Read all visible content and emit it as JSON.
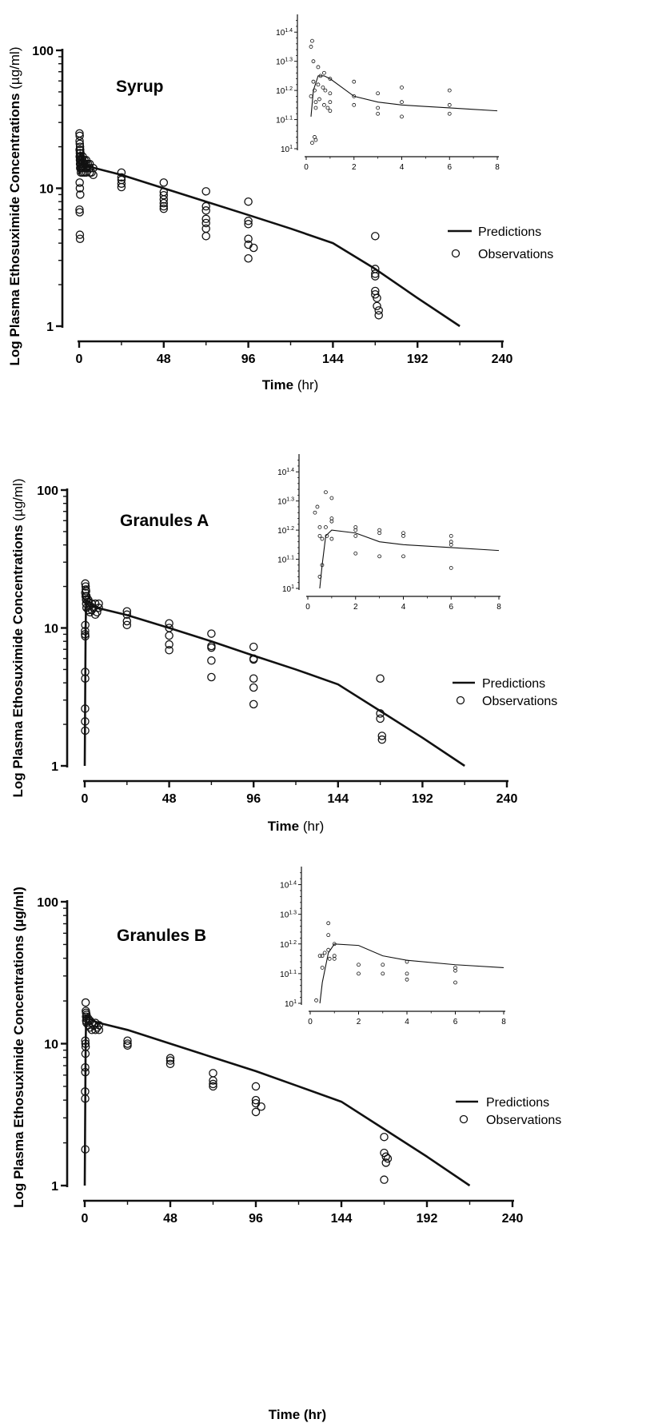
{
  "chart_data": [
    {
      "type": "scatter",
      "title": "Syrup",
      "xlabel": "Time",
      "xunit": "(hr)",
      "ylabel": "Log Plasma Ethosuximide Concentrations",
      "yunit": "(µg/ml)",
      "x_ticks": [
        0,
        48,
        96,
        144,
        192,
        240
      ],
      "x_tick_labels": [
        "0",
        "48",
        "96",
        "144",
        "192",
        "240"
      ],
      "y_ticks": [
        1,
        10,
        100
      ],
      "y_tick_labels": [
        "1",
        "10",
        "100"
      ],
      "xlim": [
        0,
        240
      ],
      "ylim": [
        1,
        100
      ],
      "y_scale": "log",
      "grid": false,
      "legend": {
        "position": "right",
        "entries": [
          "Predictions",
          "Observations"
        ]
      },
      "series": [
        {
          "name": "Predictions",
          "mark": "line",
          "x": [
            0,
            0.25,
            0.5,
            0.75,
            1,
            2,
            3,
            4,
            6,
            8,
            24,
            48,
            72,
            96,
            120,
            144,
            168,
            192,
            216
          ],
          "y": [
            12.6,
            17.0,
            18.2,
            18.2,
            17.8,
            15.6,
            15.1,
            14.8,
            14.4,
            14.1,
            12.5,
            10.0,
            8.0,
            6.4,
            5.1,
            4.0,
            2.6,
            1.6,
            1.0
          ]
        },
        {
          "name": "Observations",
          "mark": "circle",
          "x": [
            0.2,
            0.25,
            0.25,
            0.3,
            0.3,
            0.35,
            0.4,
            0.45,
            0.5,
            0.5,
            0.55,
            0.6,
            0.6,
            0.7,
            0.75,
            0.8,
            0.9,
            1,
            1,
            1,
            1.2,
            1.5,
            1.8,
            2,
            2,
            2,
            2.5,
            3,
            3,
            3,
            3.5,
            4,
            4,
            4,
            4.5,
            5,
            6,
            6,
            6,
            7,
            8,
            8,
            0.3,
            0.4,
            0.6,
            0.2,
            0.3,
            0.4,
            0.5,
            24,
            24,
            24,
            24,
            24,
            48,
            48,
            48,
            48,
            48,
            48,
            48,
            72,
            72,
            72,
            72,
            72,
            72,
            72,
            96,
            96,
            96,
            96,
            96,
            96,
            99,
            168,
            168,
            168,
            168,
            168,
            168,
            169,
            169,
            170,
            170
          ],
          "y": [
            25,
            22,
            19,
            24,
            17,
            21,
            18,
            16,
            20,
            15,
            17,
            14,
            19,
            16,
            18,
            15,
            17,
            14,
            16,
            13,
            15,
            14,
            16,
            15,
            13,
            17,
            14,
            15,
            13,
            16,
            14,
            15,
            13,
            16,
            14,
            15,
            13,
            14,
            15,
            13,
            14,
            12.5,
            11,
            10,
            9,
            7,
            6.7,
            4.6,
            4.3,
            13,
            12,
            11.5,
            10.8,
            10.2,
            11,
            9.4,
            8.9,
            8.3,
            7.8,
            7.4,
            7.1,
            9.5,
            7.4,
            6.9,
            6.0,
            5.6,
            5.1,
            4.5,
            8.0,
            5.8,
            5.5,
            4.3,
            3.9,
            3.1,
            3.7,
            4.5,
            2.6,
            2.4,
            2.3,
            1.8,
            1.7,
            1.6,
            1.4,
            1.3,
            1.2
          ]
        }
      ],
      "inset": {
        "type": "scatter",
        "x_ticks": [
          0,
          2,
          4,
          6,
          8
        ],
        "x_tick_labels": [
          "0",
          "2",
          "4",
          "6",
          "8"
        ],
        "y_ticks": [
          1.0,
          1.1,
          1.2,
          1.3,
          1.4
        ],
        "y_tick_bases": [
          "10",
          "10",
          "10",
          "10",
          "10"
        ],
        "y_tick_exponents": [
          "1",
          "1.1",
          "1.2",
          "1.3",
          "1.4"
        ],
        "xlim": [
          0,
          8
        ],
        "ylim": [
          1.0,
          1.45
        ],
        "y_scale": "log",
        "prediction": {
          "x": [
            0.2,
            0.3,
            0.5,
            0.75,
            1,
            1.5,
            2,
            3,
            4,
            5,
            6,
            7,
            8
          ],
          "y": [
            1.11,
            1.2,
            1.25,
            1.25,
            1.24,
            1.21,
            1.18,
            1.16,
            1.15,
            1.145,
            1.14,
            1.135,
            1.13
          ]
        },
        "observations": {
          "x": [
            0.2,
            0.2,
            0.25,
            0.3,
            0.3,
            0.35,
            0.4,
            0.4,
            0.5,
            0.5,
            0.55,
            0.6,
            0.7,
            0.75,
            0.75,
            0.8,
            0.9,
            1,
            1,
            1,
            1,
            0.25,
            0.35,
            0.4,
            2,
            2,
            2,
            3,
            3,
            3,
            4,
            4,
            4,
            6,
            6,
            6
          ],
          "y": [
            1.35,
            1.18,
            1.37,
            1.3,
            1.23,
            1.2,
            1.16,
            1.14,
            1.28,
            1.22,
            1.17,
            1.25,
            1.21,
            1.15,
            1.26,
            1.2,
            1.14,
            1.24,
            1.19,
            1.16,
            1.13,
            1.02,
            1.04,
            1.03,
            1.23,
            1.18,
            1.15,
            1.19,
            1.14,
            1.12,
            1.21,
            1.16,
            1.11,
            1.2,
            1.15,
            1.12
          ]
        }
      }
    },
    {
      "type": "scatter",
      "title": "Granules A",
      "xlabel": "Time",
      "xunit": "(hr)",
      "ylabel": "Log Plasma Ethosuximide Concentrations",
      "yunit": "(µg/ml)",
      "x_ticks": [
        0,
        48,
        96,
        144,
        192,
        240
      ],
      "x_tick_labels": [
        "0",
        "48",
        "96",
        "144",
        "192",
        "240"
      ],
      "y_ticks": [
        1,
        10,
        100
      ],
      "y_tick_labels": [
        "1",
        "10",
        "100"
      ],
      "xlim": [
        0,
        240
      ],
      "ylim": [
        1,
        100
      ],
      "y_scale": "log",
      "grid": false,
      "legend": {
        "position": "right",
        "entries": [
          "Predictions",
          "Observations"
        ]
      },
      "series": [
        {
          "name": "Predictions",
          "mark": "line",
          "x": [
            0,
            0.5,
            0.75,
            1,
            2,
            3,
            4,
            6,
            8,
            24,
            48,
            72,
            96,
            120,
            144,
            168,
            192,
            216
          ],
          "y": [
            1.0,
            10.0,
            15.0,
            15.8,
            15.5,
            15.0,
            14.7,
            14.2,
            13.9,
            12.4,
            10.0,
            8.0,
            6.3,
            5.0,
            3.9,
            2.5,
            1.6,
            1.0
          ]
        },
        {
          "name": "Observations",
          "mark": "circle",
          "x": [
            0.3,
            0.3,
            0.5,
            0.5,
            0.6,
            0.75,
            0.75,
            0.8,
            1,
            1,
            1,
            2,
            2,
            2,
            3,
            3,
            4,
            4,
            5,
            6,
            6,
            7,
            8,
            8,
            0.2,
            0.2,
            0.3,
            0.3,
            0.25,
            0.25,
            0.2,
            0.2,
            0.25,
            24,
            24,
            24,
            24,
            48,
            48,
            48,
            48,
            48,
            72,
            72,
            72,
            72,
            72,
            96,
            96,
            96,
            96,
            96,
            96,
            168,
            168,
            168,
            169,
            169
          ],
          "y": [
            21,
            18,
            20,
            17,
            19,
            16,
            18.5,
            15,
            17,
            14,
            16,
            15.5,
            13.5,
            16,
            14.5,
            13,
            15,
            13.5,
            14,
            15,
            12.5,
            13,
            15,
            14,
            9.5,
            9,
            8.7,
            10.5,
            4.8,
            4.3,
            2.6,
            2.1,
            1.8,
            13.2,
            12.5,
            11.2,
            10.5,
            10.8,
            10,
            8.8,
            7.6,
            6.9,
            9.1,
            7.4,
            7.2,
            5.8,
            4.4,
            7.3,
            6.0,
            5.9,
            4.3,
            3.7,
            2.8,
            4.3,
            2.4,
            2.2,
            1.65,
            1.55
          ]
        }
      ],
      "inset": {
        "type": "scatter",
        "x_ticks": [
          0,
          2,
          4,
          6,
          8
        ],
        "x_tick_labels": [
          "0",
          "2",
          "4",
          "6",
          "8"
        ],
        "y_ticks": [
          1.0,
          1.1,
          1.2,
          1.3,
          1.4
        ],
        "y_tick_bases": [
          "10",
          "10",
          "10",
          "10",
          "10"
        ],
        "y_tick_exponents": [
          "1",
          "1.1",
          "1.2",
          "1.3",
          "1.4"
        ],
        "xlim": [
          0,
          8
        ],
        "ylim": [
          1.0,
          1.45
        ],
        "y_scale": "log",
        "prediction": {
          "x": [
            0.5,
            0.6,
            0.75,
            1,
            2,
            3,
            4,
            6,
            8
          ],
          "y": [
            1.0,
            1.08,
            1.18,
            1.2,
            1.19,
            1.16,
            1.15,
            1.14,
            1.13
          ]
        },
        "observations": {
          "x": [
            0.3,
            0.4,
            0.5,
            0.5,
            0.6,
            0.75,
            0.75,
            0.8,
            1,
            1,
            1,
            1,
            0.5,
            0.6,
            2,
            2,
            2,
            2,
            3,
            3,
            3,
            4,
            4,
            4,
            6,
            6,
            6,
            6
          ],
          "y": [
            1.26,
            1.28,
            1.21,
            1.18,
            1.17,
            1.33,
            1.21,
            1.18,
            1.31,
            1.24,
            1.23,
            1.17,
            1.04,
            1.08,
            1.21,
            1.2,
            1.18,
            1.12,
            1.2,
            1.19,
            1.11,
            1.19,
            1.18,
            1.11,
            1.18,
            1.16,
            1.15,
            1.07
          ]
        }
      }
    },
    {
      "type": "scatter",
      "title": "Granules B",
      "xlabel": "Time",
      "xunit": "(hr)",
      "ylabel": "Log Plasma Ethosuximide Concentrations",
      "yunit": "(µg/ml)",
      "x_ticks": [
        0,
        48,
        96,
        144,
        192,
        240
      ],
      "x_tick_labels": [
        "0",
        "48",
        "96",
        "144",
        "192",
        "240"
      ],
      "y_ticks": [
        1,
        10,
        100
      ],
      "y_tick_labels": [
        "1",
        "10",
        "100"
      ],
      "xlim": [
        0,
        240
      ],
      "ylim": [
        1,
        100
      ],
      "y_scale": "log",
      "grid": false,
      "legend": {
        "position": "right",
        "entries": [
          "Predictions",
          "Observations"
        ]
      },
      "series": [
        {
          "name": "Predictions",
          "mark": "line",
          "x": [
            0,
            0.5,
            0.75,
            1,
            2,
            3,
            4,
            6,
            8,
            24,
            48,
            72,
            96,
            120,
            144,
            168,
            192,
            216
          ],
          "y": [
            1.0,
            10.0,
            14.5,
            15.8,
            15.5,
            15.0,
            14.7,
            14.3,
            14.0,
            12.5,
            10.0,
            8.0,
            6.4,
            5.0,
            3.9,
            2.5,
            1.6,
            1.0
          ]
        },
        {
          "name": "Observations",
          "mark": "circle",
          "x": [
            0.5,
            0.6,
            0.75,
            0.75,
            0.8,
            1,
            1,
            1,
            2,
            2,
            3,
            3,
            4,
            4,
            5,
            6,
            6,
            7,
            8,
            8,
            0.3,
            0.4,
            0.4,
            0.5,
            0.25,
            0.3,
            0.2,
            0.25,
            0.3,
            24,
            24,
            24,
            48,
            48,
            48,
            72,
            72,
            72,
            72,
            96,
            96,
            96,
            96,
            99,
            168,
            168,
            169,
            169,
            170,
            168
          ],
          "y": [
            19.5,
            17,
            16.5,
            15.5,
            14.5,
            16,
            15,
            14,
            15,
            13.5,
            14.5,
            13,
            14,
            12.5,
            13.5,
            14,
            12.5,
            13,
            13.5,
            12.5,
            10.5,
            10,
            8.5,
            9.5,
            6.8,
            6.3,
            4.6,
            4.1,
            1.8,
            10.5,
            10,
            9.7,
            7.9,
            7.6,
            7.2,
            6.2,
            5.5,
            5.2,
            5.0,
            5.0,
            4.0,
            3.8,
            3.3,
            3.6,
            2.2,
            1.7,
            1.6,
            1.45,
            1.55,
            1.1
          ]
        }
      ],
      "inset": {
        "type": "scatter",
        "x_ticks": [
          0,
          2,
          4,
          6,
          8
        ],
        "x_tick_labels": [
          "0",
          "2",
          "4",
          "6",
          "8"
        ],
        "y_ticks": [
          1.0,
          1.1,
          1.2,
          1.3,
          1.4
        ],
        "y_tick_bases": [
          "10",
          "10",
          "10",
          "10",
          "10"
        ],
        "y_tick_exponents": [
          "1",
          "1.1",
          "1.2",
          "1.3",
          "1.4"
        ],
        "xlim": [
          0,
          8
        ],
        "ylim": [
          1.0,
          1.45
        ],
        "y_scale": "log",
        "prediction": {
          "x": [
            0.4,
            0.5,
            0.75,
            1,
            2,
            3,
            4,
            6,
            8
          ],
          "y": [
            1.0,
            1.07,
            1.17,
            1.2,
            1.195,
            1.16,
            1.145,
            1.13,
            1.12
          ]
        },
        "observations": {
          "x": [
            0.25,
            0.4,
            0.5,
            0.5,
            0.6,
            0.75,
            0.75,
            0.75,
            0.8,
            1,
            1,
            1,
            2,
            2,
            3,
            3,
            4,
            4,
            4,
            6,
            6,
            6
          ],
          "y": [
            1.01,
            1.16,
            1.16,
            1.12,
            1.17,
            1.27,
            1.23,
            1.18,
            1.15,
            1.2,
            1.16,
            1.15,
            1.13,
            1.1,
            1.13,
            1.1,
            1.14,
            1.1,
            1.08,
            1.12,
            1.11,
            1.07
          ]
        }
      }
    }
  ]
}
